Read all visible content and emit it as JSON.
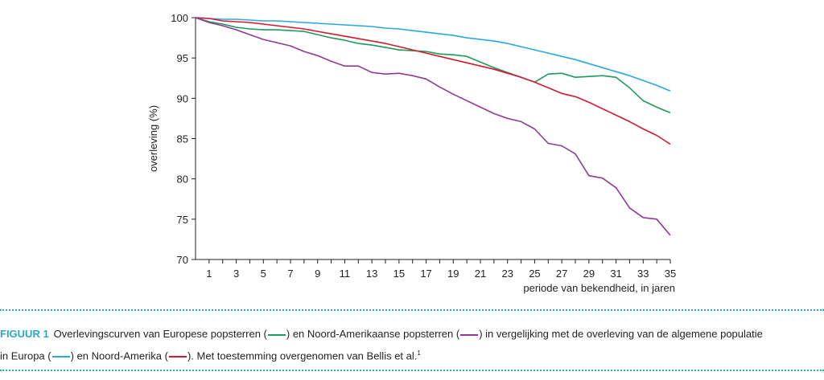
{
  "chart_data": {
    "type": "line",
    "title": "",
    "xlabel": "periode van bekendheid, in jaren",
    "ylabel": "overleving (%)",
    "ylim": [
      70,
      100
    ],
    "xlim": [
      0,
      35
    ],
    "yticks": [
      70,
      75,
      80,
      85,
      90,
      95,
      100
    ],
    "xticks_labeled": [
      1,
      3,
      5,
      7,
      9,
      11,
      13,
      15,
      17,
      19,
      21,
      23,
      25,
      27,
      29,
      31,
      33,
      35
    ],
    "x": [
      0,
      1,
      2,
      3,
      4,
      5,
      6,
      7,
      8,
      9,
      10,
      11,
      12,
      13,
      14,
      15,
      16,
      17,
      18,
      19,
      20,
      21,
      22,
      23,
      24,
      25,
      26,
      27,
      28,
      29,
      30,
      31,
      32,
      33,
      34,
      35
    ],
    "grid": false,
    "series": [
      {
        "name": "algemene populatie Europa",
        "color": "#29a9e0",
        "values": [
          100,
          99.9,
          99.8,
          99.8,
          99.7,
          99.6,
          99.6,
          99.5,
          99.4,
          99.3,
          99.2,
          99.1,
          99.0,
          98.9,
          98.7,
          98.6,
          98.4,
          98.2,
          98.0,
          97.8,
          97.5,
          97.3,
          97.1,
          96.8,
          96.4,
          96.0,
          95.6,
          95.2,
          94.8,
          94.3,
          93.8,
          93.3,
          92.8,
          92.2,
          91.6,
          90.9
        ]
      },
      {
        "name": "Europese popsterren",
        "color": "#1e9a5b",
        "values": [
          100,
          99.5,
          99.2,
          98.8,
          98.6,
          98.5,
          98.5,
          98.4,
          98.3,
          97.9,
          97.5,
          97.2,
          96.8,
          96.6,
          96.3,
          96.0,
          95.9,
          95.8,
          95.5,
          95.4,
          95.2,
          94.5,
          93.8,
          93.2,
          92.6,
          92.0,
          93.0,
          93.1,
          92.6,
          92.7,
          92.8,
          92.6,
          91.3,
          89.7,
          88.9,
          88.2
        ]
      },
      {
        "name": "algemene populatie Noord-Amerika",
        "color": "#d7192f",
        "values": [
          100,
          99.9,
          99.6,
          99.5,
          99.4,
          99.2,
          99.0,
          98.8,
          98.6,
          98.3,
          98.0,
          97.7,
          97.4,
          97.1,
          96.8,
          96.4,
          96.0,
          95.6,
          95.2,
          94.8,
          94.4,
          94.0,
          93.6,
          93.1,
          92.6,
          92.0,
          91.3,
          90.6,
          90.2,
          89.5,
          88.7,
          87.9,
          87.1,
          86.2,
          85.4,
          84.3
        ]
      },
      {
        "name": "Noord-Amerikaanse popsterren",
        "color": "#8e3a96",
        "values": [
          100,
          99.4,
          99.0,
          98.5,
          97.9,
          97.3,
          96.9,
          96.5,
          95.8,
          95.3,
          94.6,
          94.0,
          94.0,
          93.2,
          93.0,
          93.1,
          92.8,
          92.4,
          91.4,
          90.5,
          89.7,
          88.9,
          88.1,
          87.5,
          87.1,
          86.2,
          84.4,
          84.1,
          83.1,
          80.4,
          80.1,
          78.9,
          76.4,
          75.2,
          75.0,
          73.0
        ]
      }
    ]
  },
  "caption": {
    "label": "FIGUUR 1",
    "part1": "Overlevingscurven van Europese popsterren (",
    "part2": ") en Noord-Amerikaanse popsterren (",
    "part3": ") in vergelijking met de overleving van de algemene populatie",
    "part4": "in Europa (",
    "part5": ") en Noord-Amerika (",
    "part6": "). Met toestemming overgenomen van Bellis et al.",
    "sup": "1"
  }
}
